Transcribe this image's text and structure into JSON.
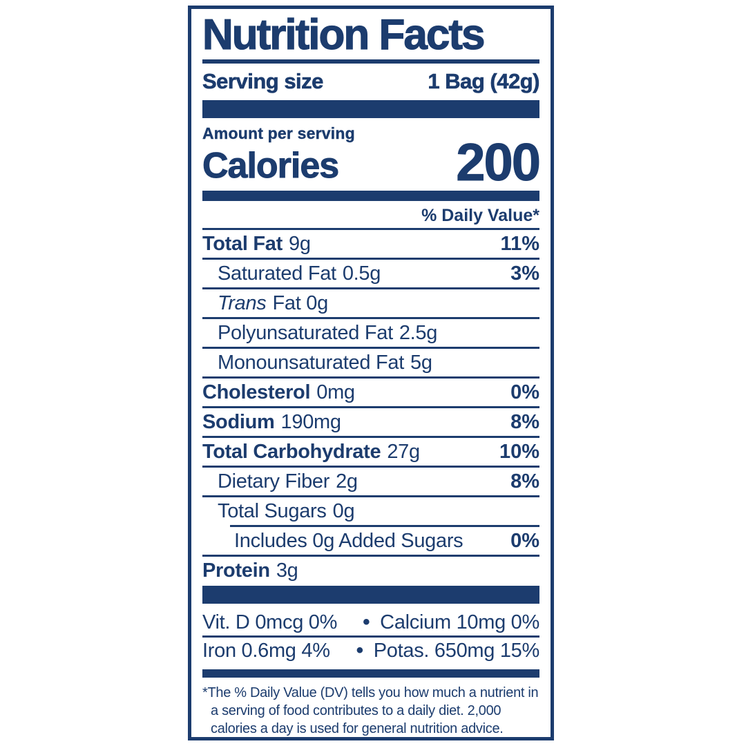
{
  "label": {
    "title": "Nutrition Facts",
    "serving": {
      "label": "Serving size",
      "value": "1 Bag (42g)"
    },
    "amount_per_serving": "Amount per serving",
    "calories": {
      "label": "Calories",
      "value": "200"
    },
    "daily_value_header": "% Daily Value*",
    "nutrients": [
      {
        "name": "Total Fat",
        "amount": "9g",
        "dv": "11%"
      },
      {
        "name": "Saturated Fat",
        "amount": "0.5g",
        "dv": "3%"
      },
      {
        "name": "Trans",
        "amount": "Fat 0g",
        "dv": ""
      },
      {
        "name": "Polyunsaturated Fat",
        "amount": "2.5g",
        "dv": ""
      },
      {
        "name": "Monounsaturated Fat",
        "amount": "5g",
        "dv": ""
      },
      {
        "name": "Cholesterol",
        "amount": "0mg",
        "dv": "0%"
      },
      {
        "name": "Sodium",
        "amount": "190mg",
        "dv": "8%"
      },
      {
        "name": "Total Carbohydrate",
        "amount": "27g",
        "dv": "10%"
      },
      {
        "name": "Dietary Fiber",
        "amount": "2g",
        "dv": "8%"
      },
      {
        "name": "Total Sugars",
        "amount": "0g",
        "dv": ""
      },
      {
        "name": "Includes 0g Added Sugars",
        "amount": "",
        "dv": "0%"
      },
      {
        "name": "Protein",
        "amount": "3g",
        "dv": ""
      }
    ],
    "micronutrients": {
      "bullet": "•",
      "rows": [
        {
          "left": "Vit. D 0mcg 0%",
          "right": "Calcium 10mg 0%"
        },
        {
          "left": "Iron 0.6mg 4%",
          "right": "Potas. 650mg 15%"
        }
      ]
    },
    "footnote_lines": [
      "*The % Daily Value (DV) tells you how much a nutrient in",
      "a serving of food contributes to a daily diet. 2,000",
      "calories a day is used for general nutrition advice."
    ],
    "colors": {
      "navy": "#1c3c6e",
      "background": "#ffffff"
    }
  }
}
